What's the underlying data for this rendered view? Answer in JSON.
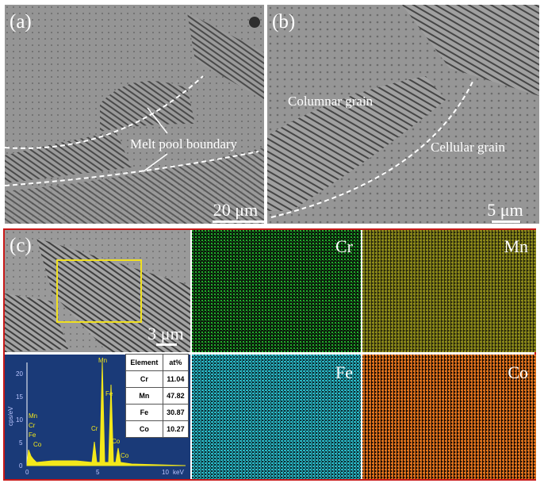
{
  "panels": {
    "a": {
      "label": "(a)",
      "scale": "20 μm",
      "annotation": "Melt pool boundary"
    },
    "b": {
      "label": "(b)",
      "scale": "5 μm",
      "annotation_columnar": "Columnar grain",
      "annotation_cellular": "Cellular grain"
    },
    "c": {
      "label": "(c)",
      "scale": "3 μm"
    }
  },
  "maps": [
    {
      "element": "Cr",
      "color": "#1fae2a"
    },
    {
      "element": "Mn",
      "color": "#8d8a1a"
    },
    {
      "element": "Fe",
      "color": "#2ab7c4"
    },
    {
      "element": "Co",
      "color": "#e0741e"
    }
  ],
  "eds": {
    "ylabel": "cps/eV",
    "xlabel": "keV",
    "xticks": [
      "0",
      "5",
      "10"
    ],
    "yticks": [
      "0",
      "5",
      "10",
      "15",
      "20"
    ],
    "peak_labels": [
      "Mn",
      "Cr",
      "Fe",
      "Co",
      "Cr",
      "Fe",
      "Co",
      "Mn",
      "Co"
    ],
    "table": {
      "header": [
        "Element",
        "at%"
      ],
      "rows": [
        {
          "element": "Cr",
          "value": "11.04"
        },
        {
          "element": "Mn",
          "value": "47.82"
        },
        {
          "element": "Fe",
          "value": "30.87"
        },
        {
          "element": "Co",
          "value": "10.27"
        }
      ]
    }
  }
}
